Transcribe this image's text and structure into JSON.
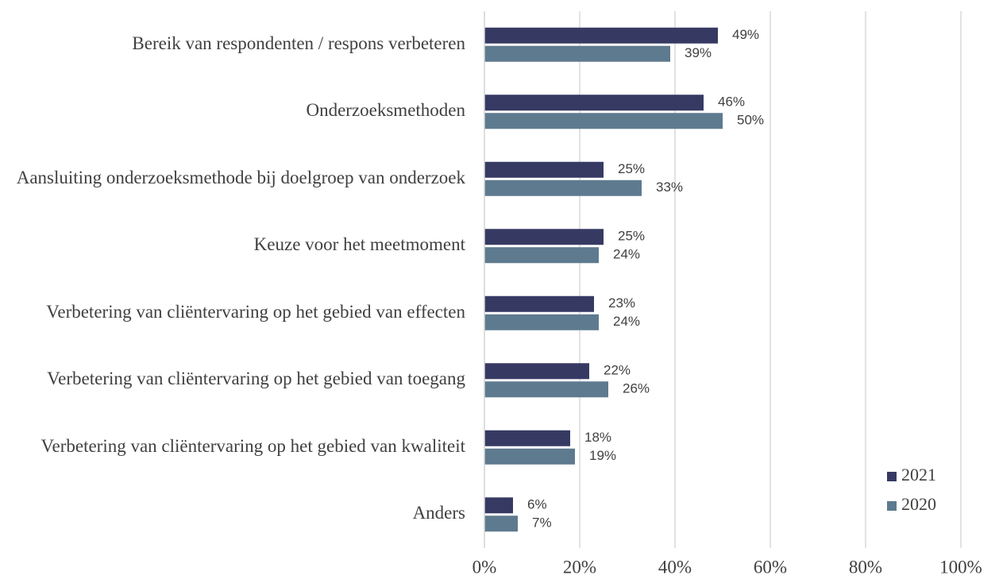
{
  "chart_data": {
    "type": "bar",
    "orientation": "horizontal",
    "categories": [
      "Bereik van respondenten / respons verbeteren",
      "Onderzoeksmethoden",
      "Aansluiting onderzoeksmethode bij doelgroep van onderzoek",
      "Keuze voor het meetmoment",
      "Verbetering van cliëntervaring op het gebied van effecten",
      "Verbetering van cliëntervaring op het gebied van toegang",
      "Verbetering van cliëntervaring op het gebied van kwaliteit",
      "Anders"
    ],
    "series": [
      {
        "name": "2021",
        "color": "#363a63",
        "values": [
          49,
          46,
          25,
          25,
          23,
          22,
          18,
          6
        ],
        "value_labels": [
          "49%",
          "46%",
          "25%",
          "25%",
          "23%",
          "22%",
          "18%",
          "6%"
        ]
      },
      {
        "name": "2020",
        "color": "#5e7a8f",
        "values": [
          39,
          50,
          33,
          24,
          24,
          26,
          19,
          7
        ],
        "value_labels": [
          "39%",
          "50%",
          "33%",
          "24%",
          "24%",
          "26%",
          "19%",
          "7%"
        ]
      }
    ],
    "xlim": [
      0,
      100
    ],
    "xticks": [
      {
        "value": 0,
        "label": "0%"
      },
      {
        "value": 20,
        "label": "20%"
      },
      {
        "value": 40,
        "label": "40%"
      },
      {
        "value": 60,
        "label": "60%"
      },
      {
        "value": 80,
        "label": "80%"
      },
      {
        "value": 100,
        "label": "100%"
      }
    ],
    "grid": true,
    "legend": "right"
  }
}
